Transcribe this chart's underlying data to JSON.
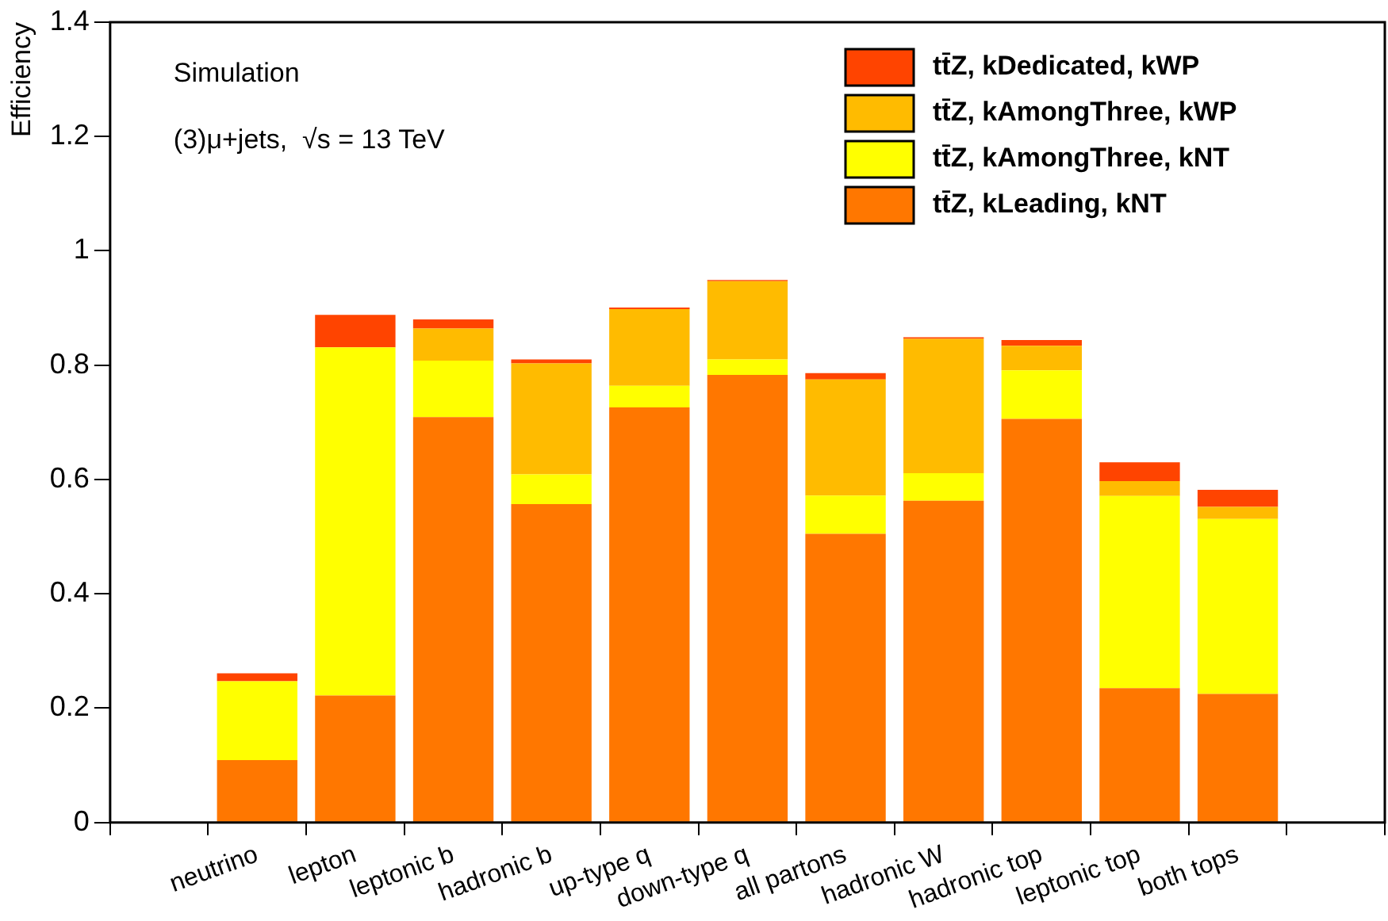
{
  "chart_data": {
    "type": "bar",
    "stacked": true,
    "ylabel": "Efficiency",
    "annotations": [
      "Simulation",
      "(3)μ+jets,  √s = 13 TeV"
    ],
    "categories": [
      null,
      "neutrino",
      "lepton",
      "leptonic b",
      "hadronic b",
      "up-type q",
      "down-type q",
      "all partons",
      "hadronic W",
      "hadronic top",
      "leptonic top",
      "both tops",
      null
    ],
    "series": [
      {
        "name": "tt̄Z, kLeading, kNT",
        "color": "#ff7700",
        "values": [
          null,
          0.109,
          0.222,
          0.709,
          0.557,
          0.726,
          0.783,
          0.505,
          0.563,
          0.706,
          0.235,
          0.225,
          null
        ]
      },
      {
        "name": "tt̄Z, kAmongThree, kNT",
        "color": "#ffff00",
        "values": [
          null,
          0.138,
          0.609,
          0.099,
          0.052,
          0.038,
          0.027,
          0.067,
          0.048,
          0.085,
          0.336,
          0.306,
          null
        ]
      },
      {
        "name": "tt̄Z, kAmongThree, kWP",
        "color": "#ffbb00",
        "values": [
          null,
          0,
          0,
          0.056,
          0.194,
          0.134,
          0.137,
          0.203,
          0.235,
          0.043,
          0.026,
          0.021,
          null
        ]
      },
      {
        "name": "tt̄Z, kDedicated, kWP",
        "color": "#ff4400",
        "values": [
          null,
          0.014,
          0.057,
          0.016,
          0.007,
          0.003,
          0.002,
          0.011,
          0.003,
          0.01,
          0.033,
          0.03,
          null
        ]
      }
    ],
    "ylim": [
      0,
      1.4
    ],
    "yticks": [
      0,
      0.2,
      0.4,
      0.6,
      0.8,
      1,
      1.2,
      1.4
    ],
    "grid": false,
    "legend": "top right"
  }
}
